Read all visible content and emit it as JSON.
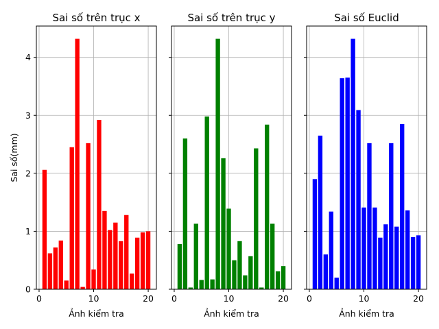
{
  "chart_data": [
    {
      "type": "bar",
      "title": "Sai số trên trục x",
      "xlabel": "Ảnh kiểm tra",
      "ylabel": "Sai số(mm)",
      "color": "#ff0000",
      "x": [
        1,
        2,
        3,
        4,
        5,
        6,
        7,
        8,
        9,
        10,
        11,
        12,
        13,
        14,
        15,
        16,
        17,
        18,
        19,
        20
      ],
      "values": [
        2.06,
        0.62,
        0.72,
        0.84,
        0.15,
        2.45,
        4.32,
        0.04,
        2.52,
        0.34,
        2.92,
        1.35,
        1.02,
        1.15,
        0.83,
        1.28,
        0.27,
        0.89,
        0.98,
        1.0
      ],
      "xlim": [
        -0.5,
        21.5
      ],
      "ylim": [
        0,
        4.54
      ],
      "xticks": [
        0,
        10,
        20
      ],
      "yticks": [
        0,
        1,
        2,
        3,
        4
      ],
      "grid": true
    },
    {
      "type": "bar",
      "title": "Sai số trên trục y",
      "xlabel": "Ảnh kiểm tra",
      "ylabel": "",
      "color": "#008000",
      "x": [
        1,
        2,
        3,
        4,
        5,
        6,
        7,
        8,
        9,
        10,
        11,
        12,
        13,
        14,
        15,
        16,
        17,
        18,
        19,
        20
      ],
      "values": [
        0.78,
        2.6,
        0.03,
        1.13,
        0.16,
        2.98,
        0.17,
        4.32,
        2.26,
        1.39,
        0.5,
        0.83,
        0.24,
        0.57,
        2.43,
        0.03,
        2.84,
        1.13,
        0.31,
        0.4
      ],
      "xlim": [
        -0.5,
        21.5
      ],
      "ylim": [
        0,
        4.54
      ],
      "xticks": [
        0,
        10,
        20
      ],
      "yticks": [
        0,
        1,
        2,
        3,
        4
      ],
      "grid": true
    },
    {
      "type": "bar",
      "title": "Sai số Euclid",
      "xlabel": "Ảnh kiểm tra",
      "ylabel": "",
      "color": "#0000ff",
      "x": [
        1,
        2,
        3,
        4,
        5,
        6,
        7,
        8,
        9,
        10,
        11,
        12,
        13,
        14,
        15,
        16,
        17,
        18,
        19,
        20
      ],
      "values": [
        1.9,
        2.65,
        0.6,
        1.34,
        0.2,
        3.64,
        3.65,
        4.32,
        3.09,
        1.41,
        2.52,
        1.41,
        0.89,
        1.12,
        2.52,
        1.08,
        2.85,
        1.36,
        0.9,
        0.93
      ],
      "xlim": [
        -0.5,
        21.5
      ],
      "ylim": [
        0,
        4.54
      ],
      "xticks": [
        0,
        10,
        20
      ],
      "yticks": [
        0,
        1,
        2,
        3,
        4
      ],
      "grid": true
    }
  ]
}
